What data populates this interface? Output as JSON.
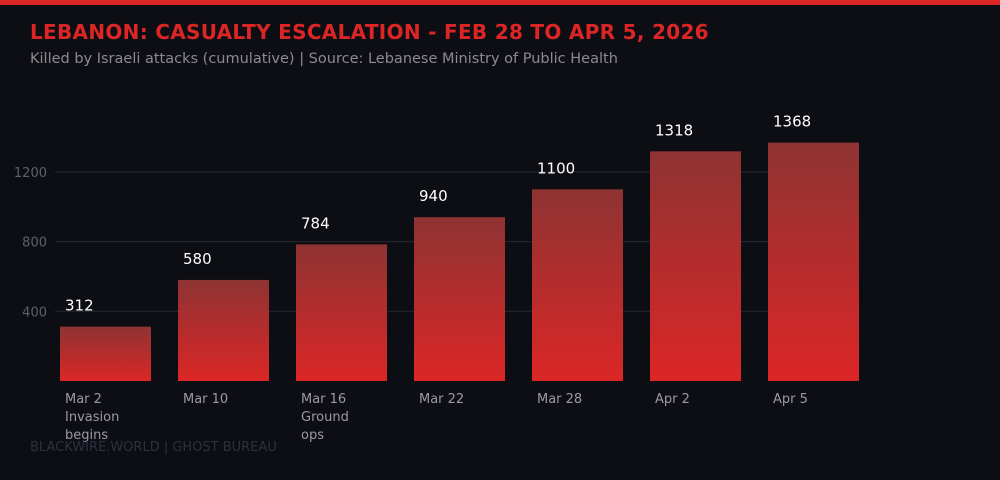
{
  "title": "LEBANON: CASUALTY ESCALATION - FEB 28 TO APR 5, 2026",
  "subtitle": "Killed by Israeli attacks (cumulative) | Source: Lebanese Ministry of Public Health",
  "footer": "BLACKWIRE.WORLD | GHOST BUREAU",
  "colors": {
    "accent": "#dc2626",
    "bar_top": "#8e3333",
    "bar_bottom": "#dc2626",
    "background": "#0d0e13"
  },
  "chart_data": {
    "type": "bar",
    "title": "LEBANON: CASUALTY ESCALATION - FEB 28 TO APR 5, 2026",
    "categories": [
      [
        "Mar 2",
        "Invasion",
        "begins"
      ],
      [
        "Mar 10"
      ],
      [
        "Mar 16",
        "Ground",
        "ops"
      ],
      [
        "Mar 22"
      ],
      [
        "Mar 28"
      ],
      [
        "Apr 2"
      ],
      [
        "Apr 5"
      ]
    ],
    "values": [
      312,
      580,
      784,
      940,
      1100,
      1318,
      1368
    ],
    "yticks": [
      400,
      800,
      1200
    ],
    "ylim": [
      0,
      1400
    ],
    "grid": true,
    "xlabel": "",
    "ylabel": ""
  }
}
